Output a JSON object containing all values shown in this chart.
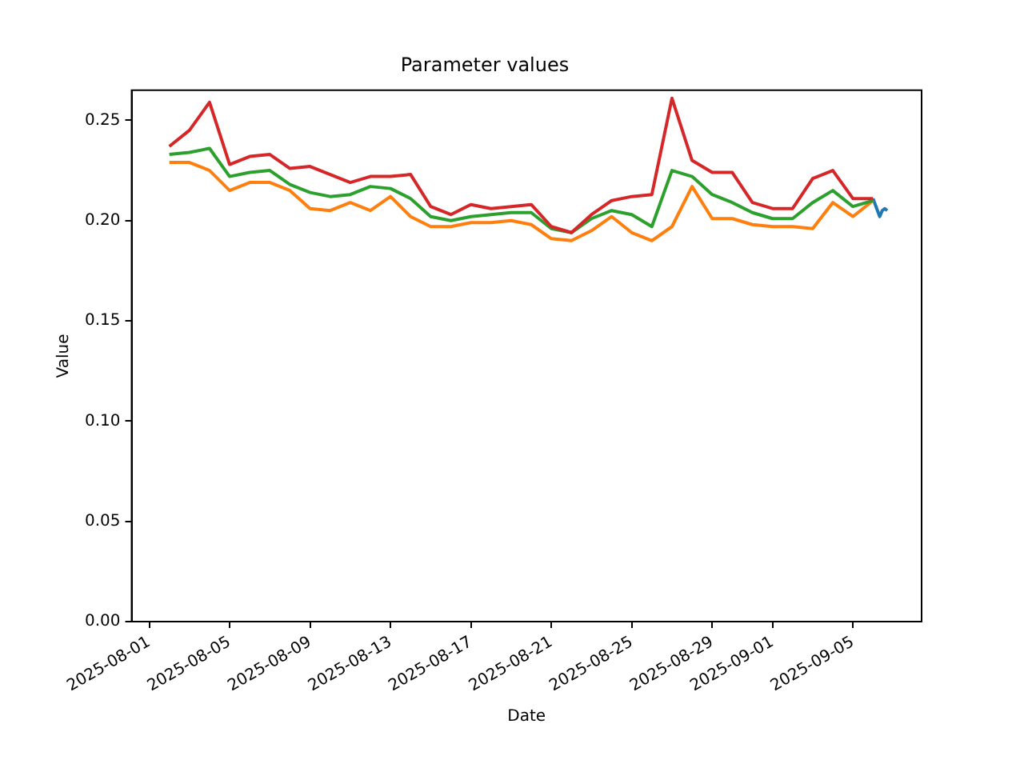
{
  "chart_data": {
    "type": "line",
    "title": "Parameter values",
    "xlabel": "Date",
    "ylabel": "Value",
    "x": [
      "2025-08-02",
      "2025-08-03",
      "2025-08-04",
      "2025-08-05",
      "2025-08-06",
      "2025-08-07",
      "2025-08-08",
      "2025-08-09",
      "2025-08-10",
      "2025-08-11",
      "2025-08-12",
      "2025-08-13",
      "2025-08-14",
      "2025-08-15",
      "2025-08-16",
      "2025-08-17",
      "2025-08-18",
      "2025-08-19",
      "2025-08-20",
      "2025-08-21",
      "2025-08-22",
      "2025-08-23",
      "2025-08-24",
      "2025-08-25",
      "2025-08-26",
      "2025-08-27",
      "2025-08-28",
      "2025-08-29",
      "2025-08-30",
      "2025-08-31",
      "2025-09-01",
      "2025-09-02",
      "2025-09-03",
      "2025-09-04",
      "2025-09-05",
      "2025-09-06"
    ],
    "series": [
      {
        "color": "#1f77b4",
        "x": [
          "2025-09-06T00:00",
          "2025-09-06T08:00",
          "2025-09-06T11:00",
          "2025-09-06T14:00",
          "2025-09-06T17:00"
        ],
        "values": [
          0.211,
          0.202,
          0.205,
          0.206,
          0.205
        ]
      },
      {
        "color": "#ff7f0e",
        "values": [
          0.229,
          0.229,
          0.225,
          0.215,
          0.219,
          0.219,
          0.215,
          0.206,
          0.205,
          0.209,
          0.205,
          0.212,
          0.202,
          0.197,
          0.197,
          0.199,
          0.199,
          0.2,
          0.198,
          0.191,
          0.19,
          0.195,
          0.202,
          0.194,
          0.19,
          0.197,
          0.217,
          0.201,
          0.201,
          0.198,
          0.197,
          0.197,
          0.196,
          0.209,
          0.202,
          0.21
        ]
      },
      {
        "color": "#2ca02c",
        "values": [
          0.233,
          0.234,
          0.236,
          0.222,
          0.224,
          0.225,
          0.218,
          0.214,
          0.212,
          0.213,
          0.217,
          0.216,
          0.211,
          0.202,
          0.2,
          0.202,
          0.203,
          0.204,
          0.204,
          0.196,
          0.194,
          0.201,
          0.205,
          0.203,
          0.197,
          0.225,
          0.222,
          0.213,
          0.209,
          0.204,
          0.201,
          0.201,
          0.209,
          0.215,
          0.207,
          0.21
        ]
      },
      {
        "color": "#d62728",
        "values": [
          0.237,
          0.245,
          0.259,
          0.228,
          0.232,
          0.233,
          0.226,
          0.227,
          0.223,
          0.219,
          0.222,
          0.222,
          0.223,
          0.207,
          0.203,
          0.208,
          0.206,
          0.207,
          0.208,
          0.197,
          0.194,
          0.203,
          0.21,
          0.212,
          0.213,
          0.261,
          0.23,
          0.224,
          0.224,
          0.209,
          0.206,
          0.206,
          0.221,
          0.225,
          0.211,
          0.211
        ]
      }
    ],
    "xlim": [
      "2025-07-31T03:00",
      "2025-09-08T10:00"
    ],
    "xticks": [
      "2025-08-01",
      "2025-08-05",
      "2025-08-09",
      "2025-08-13",
      "2025-08-17",
      "2025-08-21",
      "2025-08-25",
      "2025-08-29",
      "2025-09-01",
      "2025-09-05"
    ],
    "ylim": [
      0,
      0.265
    ],
    "yticks": [
      {
        "value": 0,
        "label": "0.00"
      },
      {
        "value": 0.05,
        "label": "0.05"
      },
      {
        "value": 0.1,
        "label": "0.10"
      },
      {
        "value": 0.15,
        "label": "0.15"
      },
      {
        "value": 0.2,
        "label": "0.20"
      },
      {
        "value": 0.25,
        "label": "0.25"
      }
    ],
    "grid": false,
    "legend": false,
    "marker": "none",
    "line_style": "solid"
  }
}
